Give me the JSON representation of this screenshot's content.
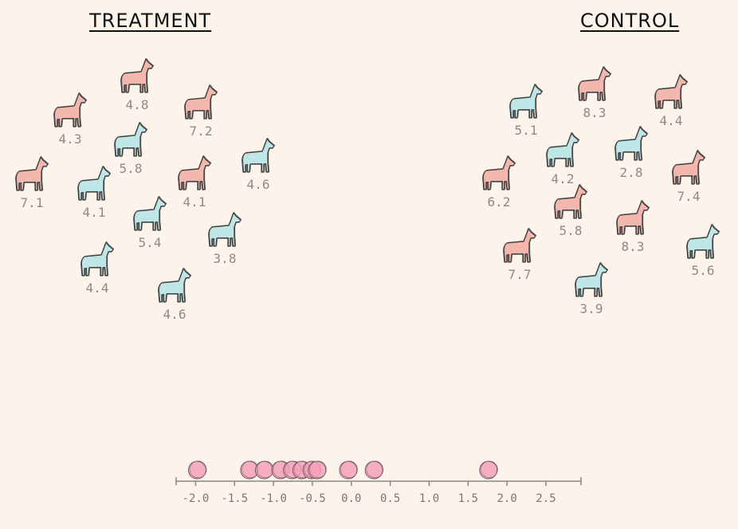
{
  "groups": {
    "treatment": {
      "title": "TREATMENT",
      "llamas": [
        {
          "value": "4.8",
          "color": "pink"
        },
        {
          "value": "4.3",
          "color": "pink"
        },
        {
          "value": "7.2",
          "color": "pink"
        },
        {
          "value": "5.8",
          "color": "blue"
        },
        {
          "value": "7.1",
          "color": "pink"
        },
        {
          "value": "4.1",
          "color": "blue"
        },
        {
          "value": "4.1",
          "color": "pink"
        },
        {
          "value": "4.6",
          "color": "blue"
        },
        {
          "value": "5.4",
          "color": "blue"
        },
        {
          "value": "3.8",
          "color": "blue"
        },
        {
          "value": "4.4",
          "color": "blue"
        },
        {
          "value": "4.6",
          "color": "blue"
        }
      ]
    },
    "control": {
      "title": "CONTROL",
      "llamas": [
        {
          "value": "5.1",
          "color": "blue"
        },
        {
          "value": "8.3",
          "color": "pink"
        },
        {
          "value": "4.4",
          "color": "pink"
        },
        {
          "value": "4.2",
          "color": "blue"
        },
        {
          "value": "2.8",
          "color": "blue"
        },
        {
          "value": "6.2",
          "color": "pink"
        },
        {
          "value": "7.4",
          "color": "pink"
        },
        {
          "value": "5.8",
          "color": "pink"
        },
        {
          "value": "8.3",
          "color": "pink"
        },
        {
          "value": "7.7",
          "color": "pink"
        },
        {
          "value": "5.6",
          "color": "blue"
        },
        {
          "value": "3.9",
          "color": "blue"
        }
      ]
    }
  },
  "colors": {
    "pink": "#f4b7ae",
    "blue": "#bfe6e6",
    "dot": "#f4a0b8",
    "axis": "#888888"
  },
  "axis": {
    "min": -2.25,
    "max": 2.95,
    "ticks": [
      "-2.0",
      "-1.5",
      "-1.0",
      "-0.5",
      "0.0",
      "0.5",
      "1.0",
      "1.5",
      "2.0",
      "2.5"
    ]
  },
  "dots": [
    -1.98,
    -1.31,
    -1.12,
    -0.91,
    -0.76,
    -0.64,
    -0.51,
    -0.44,
    -0.04,
    0.29,
    1.76
  ]
}
